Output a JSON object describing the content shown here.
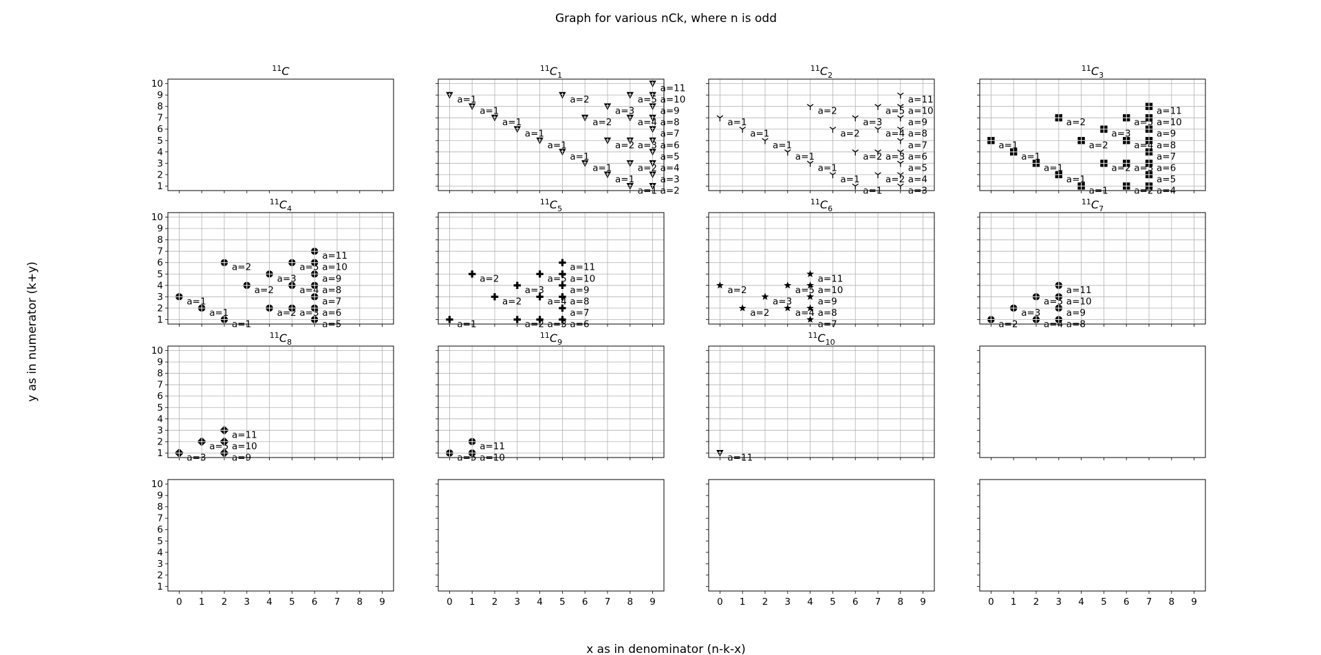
{
  "suptitle": "Graph for various nCk, where n is odd",
  "xlabel": "x as in denominator (n-k-x)",
  "ylabel": "y as in numerator (k+y)",
  "chart_data": {
    "type": "scatter",
    "grid": true,
    "layout": "4x4 grid of subplots, shared axes",
    "xlim": [
      -0.5,
      9.5
    ],
    "ylim": [
      0.6,
      10.4
    ],
    "xticks": [
      0,
      1,
      2,
      3,
      4,
      5,
      6,
      7,
      8,
      9
    ],
    "yticks": [
      1,
      2,
      3,
      4,
      5,
      6,
      7,
      8,
      9,
      10
    ],
    "panels": [
      {
        "n": "11",
        "k": "",
        "points": []
      },
      {
        "n": "11",
        "k": "1",
        "marker": "triangle-down",
        "points": [
          {
            "x": 0,
            "y": 9,
            "label": "a=1"
          },
          {
            "x": 1,
            "y": 8,
            "label": "a=1"
          },
          {
            "x": 2,
            "y": 7,
            "label": "a=1"
          },
          {
            "x": 3,
            "y": 6,
            "label": "a=1"
          },
          {
            "x": 4,
            "y": 5,
            "label": "a=1"
          },
          {
            "x": 5,
            "y": 4,
            "label": "a=1"
          },
          {
            "x": 6,
            "y": 3,
            "label": "a=1"
          },
          {
            "x": 7,
            "y": 2,
            "label": "a=1"
          },
          {
            "x": 8,
            "y": 1,
            "label": "a=1"
          },
          {
            "x": 5,
            "y": 9,
            "label": "a=2"
          },
          {
            "x": 6,
            "y": 7,
            "label": "a=2"
          },
          {
            "x": 7,
            "y": 5,
            "label": "a=2"
          },
          {
            "x": 8,
            "y": 3,
            "label": "a=2"
          },
          {
            "x": 9,
            "y": 1,
            "label": "a=2"
          },
          {
            "x": 7,
            "y": 8,
            "label": "a=3"
          },
          {
            "x": 8,
            "y": 5,
            "label": "a=3"
          },
          {
            "x": 9,
            "y": 2,
            "label": "a=3"
          },
          {
            "x": 8,
            "y": 7,
            "label": "a=4"
          },
          {
            "x": 9,
            "y": 3,
            "label": "a=4"
          },
          {
            "x": 8,
            "y": 9,
            "label": "a=5"
          },
          {
            "x": 9,
            "y": 4,
            "label": "a=5"
          },
          {
            "x": 9,
            "y": 5,
            "label": "a=6"
          },
          {
            "x": 9,
            "y": 6,
            "label": "a=7"
          },
          {
            "x": 9,
            "y": 7,
            "label": "a=8"
          },
          {
            "x": 9,
            "y": 8,
            "label": "a=9"
          },
          {
            "x": 9,
            "y": 9,
            "label": "a=10"
          },
          {
            "x": 9,
            "y": 10,
            "label": "a=11"
          }
        ]
      },
      {
        "n": "11",
        "k": "2",
        "marker": "tri-down",
        "points": [
          {
            "x": 0,
            "y": 7,
            "label": "a=1"
          },
          {
            "x": 1,
            "y": 6,
            "label": "a=1"
          },
          {
            "x": 2,
            "y": 5,
            "label": "a=1"
          },
          {
            "x": 3,
            "y": 4,
            "label": "a=1"
          },
          {
            "x": 4,
            "y": 3,
            "label": "a=1"
          },
          {
            "x": 5,
            "y": 2,
            "label": "a=1"
          },
          {
            "x": 6,
            "y": 1,
            "label": "a=1"
          },
          {
            "x": 4,
            "y": 8,
            "label": "a=2"
          },
          {
            "x": 5,
            "y": 6,
            "label": "a=2"
          },
          {
            "x": 6,
            "y": 4,
            "label": "a=2"
          },
          {
            "x": 7,
            "y": 2,
            "label": "a=2"
          },
          {
            "x": 6,
            "y": 7,
            "label": "a=3"
          },
          {
            "x": 7,
            "y": 4,
            "label": "a=3"
          },
          {
            "x": 8,
            "y": 1,
            "label": "a=3"
          },
          {
            "x": 7,
            "y": 6,
            "label": "a=4"
          },
          {
            "x": 8,
            "y": 2,
            "label": "a=4"
          },
          {
            "x": 7,
            "y": 8,
            "label": "a=5"
          },
          {
            "x": 8,
            "y": 3,
            "label": "a=5"
          },
          {
            "x": 8,
            "y": 4,
            "label": "a=6"
          },
          {
            "x": 8,
            "y": 5,
            "label": "a=7"
          },
          {
            "x": 8,
            "y": 6,
            "label": "a=8"
          },
          {
            "x": 8,
            "y": 7,
            "label": "a=9"
          },
          {
            "x": 8,
            "y": 8,
            "label": "a=10"
          },
          {
            "x": 8,
            "y": 9,
            "label": "a=11"
          }
        ]
      },
      {
        "n": "11",
        "k": "3",
        "marker": "square-plus",
        "points": [
          {
            "x": 0,
            "y": 5,
            "label": "a=1"
          },
          {
            "x": 1,
            "y": 4,
            "label": "a=1"
          },
          {
            "x": 2,
            "y": 3,
            "label": "a=1"
          },
          {
            "x": 3,
            "y": 2,
            "label": "a=1"
          },
          {
            "x": 4,
            "y": 1,
            "label": "a=1"
          },
          {
            "x": 3,
            "y": 7,
            "label": "a=2"
          },
          {
            "x": 4,
            "y": 5,
            "label": "a=2"
          },
          {
            "x": 5,
            "y": 3,
            "label": "a=2"
          },
          {
            "x": 6,
            "y": 1,
            "label": "a=2"
          },
          {
            "x": 5,
            "y": 6,
            "label": "a=3"
          },
          {
            "x": 6,
            "y": 3,
            "label": "a=3"
          },
          {
            "x": 6,
            "y": 5,
            "label": "a=4"
          },
          {
            "x": 7,
            "y": 1,
            "label": "a=4"
          },
          {
            "x": 6,
            "y": 7,
            "label": "a=5"
          },
          {
            "x": 7,
            "y": 2,
            "label": "a=5"
          },
          {
            "x": 7,
            "y": 3,
            "label": "a=6"
          },
          {
            "x": 7,
            "y": 4,
            "label": "a=7"
          },
          {
            "x": 7,
            "y": 5,
            "label": "a=8"
          },
          {
            "x": 7,
            "y": 6,
            "label": "a=9"
          },
          {
            "x": 7,
            "y": 7,
            "label": "a=10"
          },
          {
            "x": 7,
            "y": 8,
            "label": "a=11"
          }
        ]
      },
      {
        "n": "11",
        "k": "4",
        "marker": "circle-plus",
        "points": [
          {
            "x": 0,
            "y": 3,
            "label": "a=1"
          },
          {
            "x": 1,
            "y": 2,
            "label": "a=1"
          },
          {
            "x": 2,
            "y": 1,
            "label": "a=1"
          },
          {
            "x": 2,
            "y": 6,
            "label": "a=2"
          },
          {
            "x": 3,
            "y": 4,
            "label": "a=2"
          },
          {
            "x": 4,
            "y": 2,
            "label": "a=2"
          },
          {
            "x": 4,
            "y": 5,
            "label": "a=3"
          },
          {
            "x": 5,
            "y": 2,
            "label": "a=3"
          },
          {
            "x": 5,
            "y": 4,
            "label": "a=4"
          },
          {
            "x": 5,
            "y": 6,
            "label": "a=5"
          },
          {
            "x": 6,
            "y": 1,
            "label": "a=5"
          },
          {
            "x": 6,
            "y": 2,
            "label": "a=6"
          },
          {
            "x": 6,
            "y": 3,
            "label": "a=7"
          },
          {
            "x": 6,
            "y": 4,
            "label": "a=8"
          },
          {
            "x": 6,
            "y": 5,
            "label": "a=9"
          },
          {
            "x": 6,
            "y": 6,
            "label": "a=10"
          },
          {
            "x": 6,
            "y": 7,
            "label": "a=11"
          }
        ]
      },
      {
        "n": "11",
        "k": "5",
        "marker": "plus",
        "points": [
          {
            "x": 0,
            "y": 1,
            "label": "a=1"
          },
          {
            "x": 1,
            "y": 5,
            "label": "a=2"
          },
          {
            "x": 2,
            "y": 3,
            "label": "a=2"
          },
          {
            "x": 3,
            "y": 1,
            "label": "a=2"
          },
          {
            "x": 3,
            "y": 4,
            "label": "a=3"
          },
          {
            "x": 4,
            "y": 1,
            "label": "a=3"
          },
          {
            "x": 4,
            "y": 3,
            "label": "a=4"
          },
          {
            "x": 4,
            "y": 5,
            "label": "a=5"
          },
          {
            "x": 5,
            "y": 1,
            "label": "a=6"
          },
          {
            "x": 5,
            "y": 2,
            "label": "a=7"
          },
          {
            "x": 5,
            "y": 3,
            "label": "a=8"
          },
          {
            "x": 5,
            "y": 4,
            "label": "a=9"
          },
          {
            "x": 5,
            "y": 5,
            "label": "a=10"
          },
          {
            "x": 5,
            "y": 6,
            "label": "a=11"
          }
        ]
      },
      {
        "n": "11",
        "k": "6",
        "marker": "star",
        "points": [
          {
            "x": 0,
            "y": 4,
            "label": "a=2"
          },
          {
            "x": 1,
            "y": 2,
            "label": "a=2"
          },
          {
            "x": 2,
            "y": 3,
            "label": "a=3"
          },
          {
            "x": 3,
            "y": 2,
            "label": "a=4"
          },
          {
            "x": 3,
            "y": 4,
            "label": "a=5"
          },
          {
            "x": 4,
            "y": 1,
            "label": "a=7"
          },
          {
            "x": 4,
            "y": 2,
            "label": "a=8"
          },
          {
            "x": 4,
            "y": 3,
            "label": "a=9"
          },
          {
            "x": 4,
            "y": 4,
            "label": "a=10"
          },
          {
            "x": 4,
            "y": 5,
            "label": "a=11"
          }
        ]
      },
      {
        "n": "11",
        "k": "7",
        "marker": "circle-plus",
        "points": [
          {
            "x": 0,
            "y": 1,
            "label": "a=2"
          },
          {
            "x": 1,
            "y": 2,
            "label": "a=3"
          },
          {
            "x": 2,
            "y": 1,
            "label": "a=4"
          },
          {
            "x": 2,
            "y": 3,
            "label": "a=5"
          },
          {
            "x": 3,
            "y": 1,
            "label": "a=8"
          },
          {
            "x": 3,
            "y": 2,
            "label": "a=9"
          },
          {
            "x": 3,
            "y": 3,
            "label": "a=10"
          },
          {
            "x": 3,
            "y": 4,
            "label": "a=11"
          }
        ]
      },
      {
        "n": "11",
        "k": "8",
        "marker": "diamond-plus",
        "points": [
          {
            "x": 0,
            "y": 1,
            "label": "a=3"
          },
          {
            "x": 1,
            "y": 2,
            "label": "a=5"
          },
          {
            "x": 2,
            "y": 1,
            "label": "a=9"
          },
          {
            "x": 2,
            "y": 2,
            "label": "a=10"
          },
          {
            "x": 2,
            "y": 3,
            "label": "a=11"
          }
        ]
      },
      {
        "n": "11",
        "k": "9",
        "marker": "circle-plus",
        "points": [
          {
            "x": 0,
            "y": 1,
            "label": "a=5"
          },
          {
            "x": 1,
            "y": 1,
            "label": "a=10"
          },
          {
            "x": 1,
            "y": 2,
            "label": "a=11"
          }
        ]
      },
      {
        "n": "11",
        "k": "10",
        "marker": "triangle-down",
        "points": [
          {
            "x": 0,
            "y": 1,
            "label": "a=11"
          }
        ]
      },
      {
        "n": "",
        "k": "",
        "points": []
      },
      {
        "n": "",
        "k": "",
        "points": []
      },
      {
        "n": "",
        "k": "",
        "points": []
      },
      {
        "n": "",
        "k": "",
        "points": []
      },
      {
        "n": "",
        "k": "",
        "points": []
      }
    ]
  }
}
